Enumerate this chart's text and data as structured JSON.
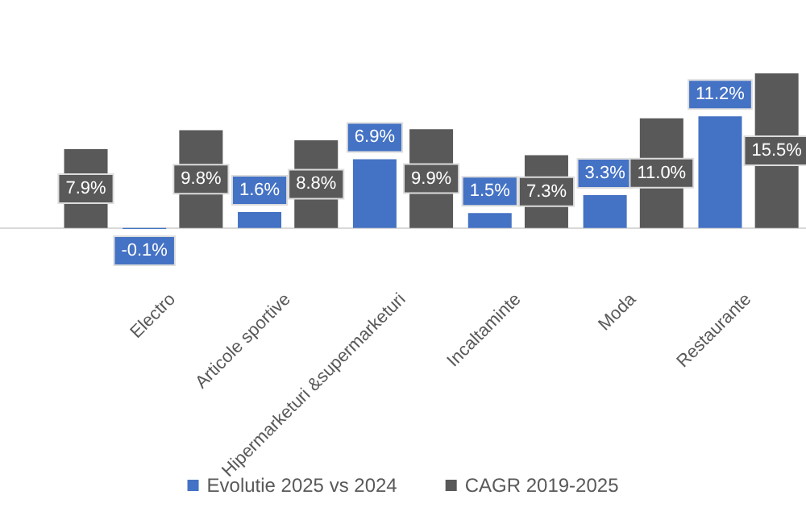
{
  "chart_data": {
    "type": "bar",
    "categories": [
      null,
      "Electro",
      "Articole sportive",
      "Hipermarketuri &supermarketuri",
      "Incaltaminte",
      "Moda",
      "Restaurante"
    ],
    "series": [
      {
        "name": "Evolutie 2025 vs 2024",
        "color": "#4472c4",
        "values": [
          null,
          -0.1,
          1.6,
          6.9,
          1.5,
          3.3,
          11.2
        ],
        "value_labels": [
          null,
          "-0.1%",
          "1.6%",
          "6.9%",
          "1.5%",
          "3.3%",
          "11.2%"
        ]
      },
      {
        "name": "CAGR 2019-2025",
        "color": "#595959",
        "values": [
          7.9,
          9.8,
          8.8,
          9.9,
          7.3,
          11.0,
          15.5
        ],
        "value_labels": [
          "7.9%",
          "9.8%",
          "8.8%",
          "9.9%",
          "7.3%",
          "11.0%",
          "15.5%"
        ]
      }
    ],
    "legend": "bottom"
  }
}
